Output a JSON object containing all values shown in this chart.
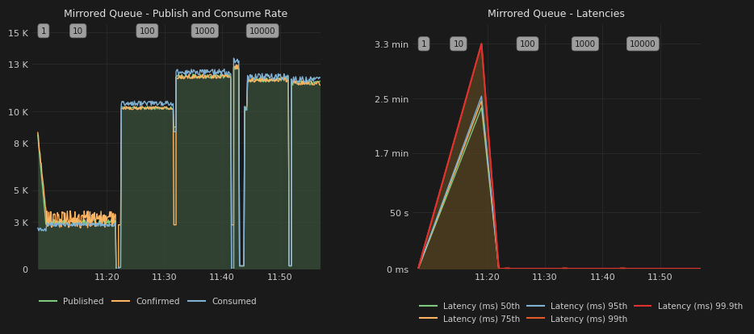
{
  "bg_color": "#1a1a1a",
  "grid_color": "#2e2e2e",
  "text_color": "#cccccc",
  "title_color": "#e0e0e0",
  "left_title": "Mirrored Queue - Publish and Consume Rate",
  "right_title": "Mirrored Queue - Latencies",
  "prefetch_labels": [
    "1",
    "10",
    "100",
    "1000",
    "10000"
  ],
  "time_labels": [
    "11:20",
    "11:30",
    "11:40",
    "11:50"
  ],
  "left_yticklabels": [
    "0",
    "3 K",
    "5 K",
    "8 K",
    "10 K",
    "13 K",
    "15 K"
  ],
  "left_ytick_vals": [
    0,
    3000,
    5000,
    8000,
    10000,
    13000,
    15000
  ],
  "left_ylim": [
    0,
    15500
  ],
  "right_yticklabels": [
    "0 ms",
    "50 s",
    "1.7 min",
    "2.5 min",
    "3.3 min"
  ],
  "right_ytick_vals": [
    0,
    50000,
    102000,
    150000,
    198000
  ],
  "right_ylim": [
    0,
    215000
  ],
  "published_color": "#7fc97f",
  "confirmed_color": "#fdb462",
  "consumed_color": "#80b1d3",
  "fill_color": "#3a4f3a",
  "lat_50_color": "#7fc97f",
  "lat_75_color": "#fdb462",
  "lat_95_color": "#80b1d3",
  "lat_99_color": "#e05a2b",
  "lat_999_color": "#e03030",
  "lat_fill_color": "#5a4520",
  "left_legend": [
    {
      "label": "Published",
      "color": "#7fc97f"
    },
    {
      "label": "Confirmed",
      "color": "#fdb462"
    },
    {
      "label": "Consumed",
      "color": "#80b1d3"
    }
  ],
  "right_legend": [
    {
      "label": "Latency (ms) 50th",
      "color": "#7fc97f"
    },
    {
      "label": "Latency (ms) 75th",
      "color": "#fdb462"
    },
    {
      "label": "Latency (ms) 95th",
      "color": "#80b1d3"
    },
    {
      "label": "Latency (ms) 99th",
      "color": "#e05a2b"
    },
    {
      "label": "Latency (ms) 99.9th",
      "color": "#e03030"
    }
  ],
  "left_prefetch_x": [
    1109,
    1115,
    1127,
    1137,
    1147
  ],
  "right_prefetch_x": [
    1109,
    1115,
    1127,
    1137,
    1147
  ],
  "xlim": [
    1107,
    1157
  ],
  "xticks": [
    1120,
    1130,
    1140,
    1150
  ]
}
